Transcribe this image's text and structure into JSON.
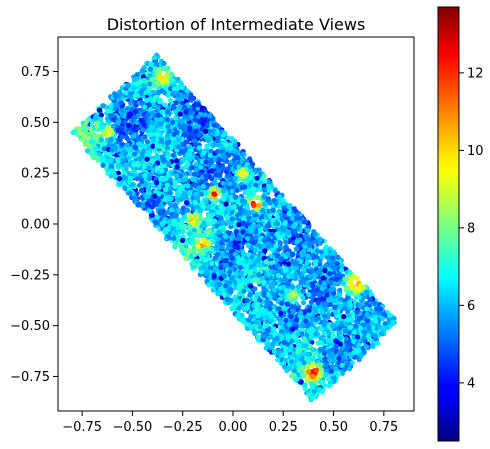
{
  "chart_data": {
    "type": "scatter",
    "title": "Distortion of Intermediate Views",
    "xlabel": "",
    "ylabel": "",
    "xlim": [
      -0.87,
      0.9
    ],
    "ylim": [
      -0.92,
      0.92
    ],
    "x_ticks": [
      -0.75,
      -0.5,
      -0.25,
      0.0,
      0.25,
      0.5,
      0.75
    ],
    "x_tick_labels": [
      "−0.75",
      "−0.50",
      "−0.25",
      "0.00",
      "0.25",
      "0.50",
      "0.75"
    ],
    "y_ticks": [
      0.75,
      0.5,
      0.25,
      0.0,
      -0.25,
      -0.5,
      -0.75
    ],
    "y_tick_labels": [
      "0.75",
      "0.50",
      "0.25",
      "0.00",
      "−0.25",
      "−0.50",
      "−0.75"
    ],
    "grid": false,
    "colormap": "jet",
    "colorbar": {
      "range": [
        2.5,
        13.7
      ],
      "ticks": [
        4,
        6,
        8,
        10,
        12
      ],
      "tick_labels": [
        "4",
        "6",
        "8",
        "10",
        "12"
      ]
    },
    "region": {
      "shape": "rotated-rectangle",
      "corners": [
        [
          -0.8,
          0.45
        ],
        [
          -0.38,
          0.83
        ],
        [
          0.82,
          -0.48
        ],
        [
          0.4,
          -0.87
        ]
      ]
    },
    "point_count": 6000,
    "baseline_value": 6.0,
    "hotspots": [
      {
        "x": 0.11,
        "y": 0.1,
        "value": 13.5,
        "r": 0.03
      },
      {
        "x": -0.09,
        "y": 0.15,
        "value": 13.0,
        "r": 0.03
      },
      {
        "x": 0.4,
        "y": -0.73,
        "value": 13.2,
        "r": 0.04
      },
      {
        "x": 0.61,
        "y": -0.29,
        "value": 11.8,
        "r": 0.05
      },
      {
        "x": -0.62,
        "y": 0.45,
        "value": 11.5,
        "r": 0.025
      },
      {
        "x": -0.15,
        "y": -0.1,
        "value": 12.0,
        "r": 0.025
      },
      {
        "x": 0.05,
        "y": 0.25,
        "value": 11.0,
        "r": 0.03
      },
      {
        "x": -0.2,
        "y": 0.02,
        "value": 11.0,
        "r": 0.03
      },
      {
        "x": -0.35,
        "y": 0.72,
        "value": 10.5,
        "r": 0.04
      },
      {
        "x": 0.3,
        "y": -0.35,
        "value": 10.0,
        "r": 0.03
      }
    ]
  }
}
